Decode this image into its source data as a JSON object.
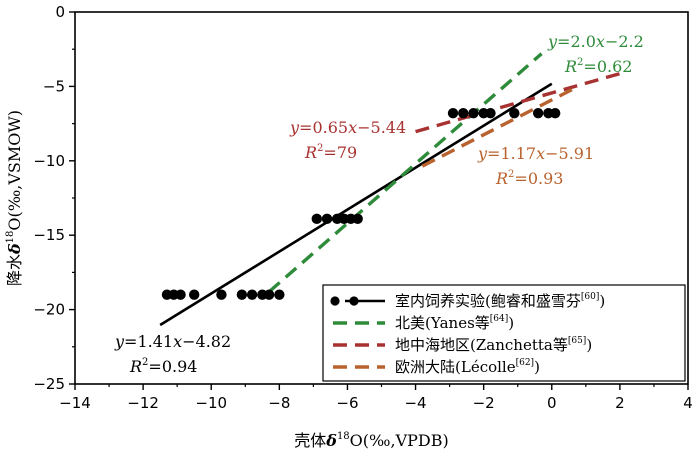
{
  "chart_data": {
    "type": "scatter",
    "xlabel": "壳体δ¹⁸O(‰,VPDB)",
    "ylabel": "降水δ¹⁸O(‰,VSMOW)",
    "xlim": [
      -14,
      4
    ],
    "ylim": [
      -25,
      0
    ],
    "xticks": [
      "−14",
      "−12",
      "−10",
      "−8",
      "−6",
      "−4",
      "−2",
      "0",
      "2",
      "4"
    ],
    "yticks": [
      "0",
      "−5",
      "−10",
      "−15",
      "−20",
      "−25"
    ],
    "grid": false,
    "legend_position": "bottom-right",
    "points": {
      "name": "室内饲养实验(鲍睿和盛雪芬[60])",
      "color": "#000000",
      "x": [
        -11.3,
        -11.1,
        -10.9,
        -10.5,
        -9.7,
        -9.1,
        -8.8,
        -8.5,
        -8.3,
        -8.0,
        -6.9,
        -6.6,
        -6.3,
        -6.1,
        -5.9,
        -5.7,
        -2.9,
        -2.6,
        -2.3,
        -2.0,
        -1.8,
        -1.1,
        -0.4,
        -0.1,
        0.1
      ],
      "y": [
        -19,
        -19,
        -19,
        -19,
        -19,
        -19,
        -19,
        -19,
        -19,
        -19,
        -13.9,
        -13.9,
        -13.9,
        -13.9,
        -13.9,
        -13.9,
        -6.8,
        -6.8,
        -6.8,
        -6.8,
        -6.8,
        -6.8,
        -6.8,
        -6.8,
        -6.8
      ]
    },
    "series": [
      {
        "name": "室内饲养实验(鲍睿和盛雪芬[60])",
        "style": "solid",
        "color": "#000000",
        "x": [
          -11.5,
          0
        ],
        "equation": {
          "slope": "1.41",
          "intercept": "−4.82",
          "r2": "0.94"
        }
      },
      {
        "name": "北美(Yanes等[64])",
        "style": "dashed",
        "color": "#2e8b3a",
        "x": [
          -8.3,
          -0.3
        ],
        "equation": {
          "slope": "2.0",
          "intercept": "−2.2",
          "r2": "0.62"
        }
      },
      {
        "name": "地中海地区(Zanchetta等[65])",
        "style": "dashed",
        "color": "#a83232",
        "x": [
          -4,
          2
        ],
        "equation": {
          "slope": "0.65",
          "intercept": "−5.44",
          "r2": "79"
        }
      },
      {
        "name": "欧洲大陆(Lécolle[62])",
        "style": "dashed",
        "color": "#b8622e",
        "x": [
          -3.8,
          0.6
        ],
        "equation": {
          "slope": "1.17",
          "intercept": "−5.91",
          "r2": "0.93"
        }
      }
    ]
  },
  "text": {
    "xlabel_prefix": "壳体",
    "ylabel_prefix": "降水",
    "delta": "δ",
    "iso": "18",
    "xlabel_suffix": "O(‰,VPDB)",
    "ylabel_suffix": "O(‰,VSMOW)",
    "legend": [
      {
        "label": "室内饲养实验(鲍睿和盛雪芬",
        "ref": "[60]",
        "close": ")"
      },
      {
        "label": "北美(Yanes等",
        "ref": "[64]",
        "close": ")"
      },
      {
        "label": "地中海地区(Zanchetta等",
        "ref": "[65]",
        "close": ")"
      },
      {
        "label": "欧洲大陆(Lécolle",
        "ref": "[62]",
        "close": ")"
      }
    ]
  }
}
